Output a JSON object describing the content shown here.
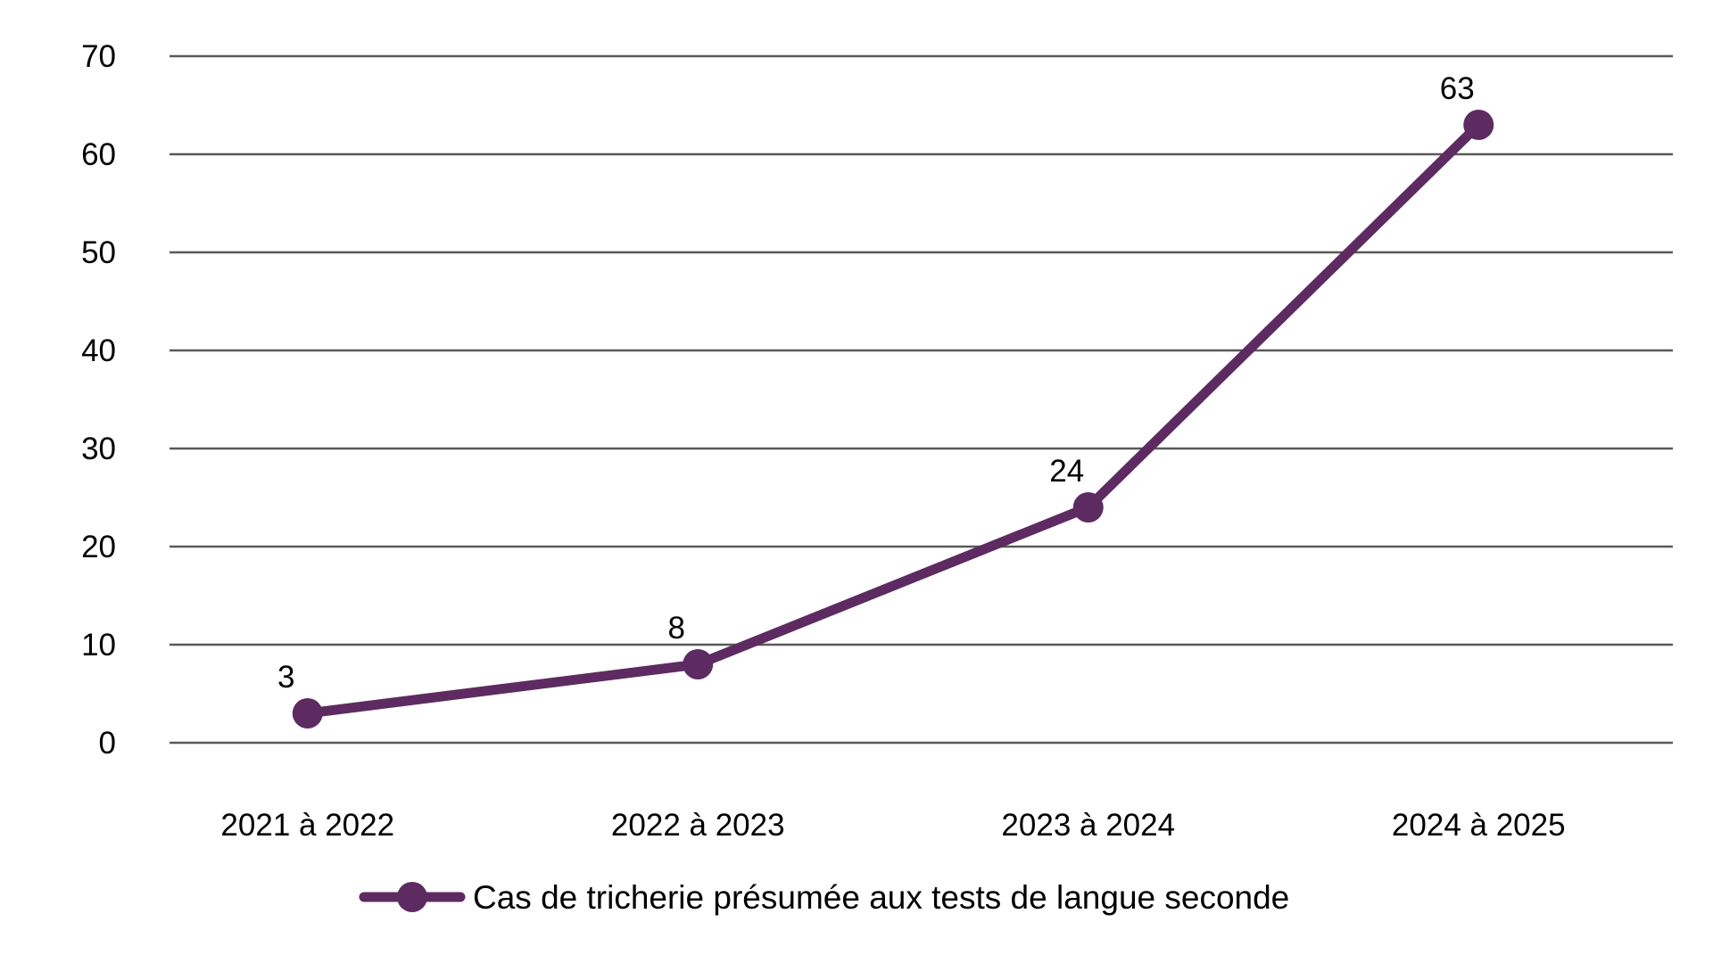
{
  "chart_data": {
    "type": "line",
    "categories": [
      "2021 à 2022",
      "2022 à 2023",
      "2023 à 2024",
      "2024 à 2025"
    ],
    "series": [
      {
        "name": "Cas de tricherie présumée aux tests de langue seconde",
        "values": [
          3,
          8,
          24,
          63
        ]
      }
    ],
    "data_labels": [
      "3",
      "8",
      "24",
      "63"
    ],
    "yticks": [
      0,
      10,
      20,
      30,
      40,
      50,
      60,
      70
    ],
    "ylim": [
      0,
      70
    ],
    "xlabel": "",
    "ylabel": "",
    "grid": "horizontal",
    "legend_position": "bottom",
    "colors": {
      "series": "#5D2B61",
      "gridline": "#595959",
      "text": "#000000",
      "background": "#FFFFFF"
    }
  }
}
